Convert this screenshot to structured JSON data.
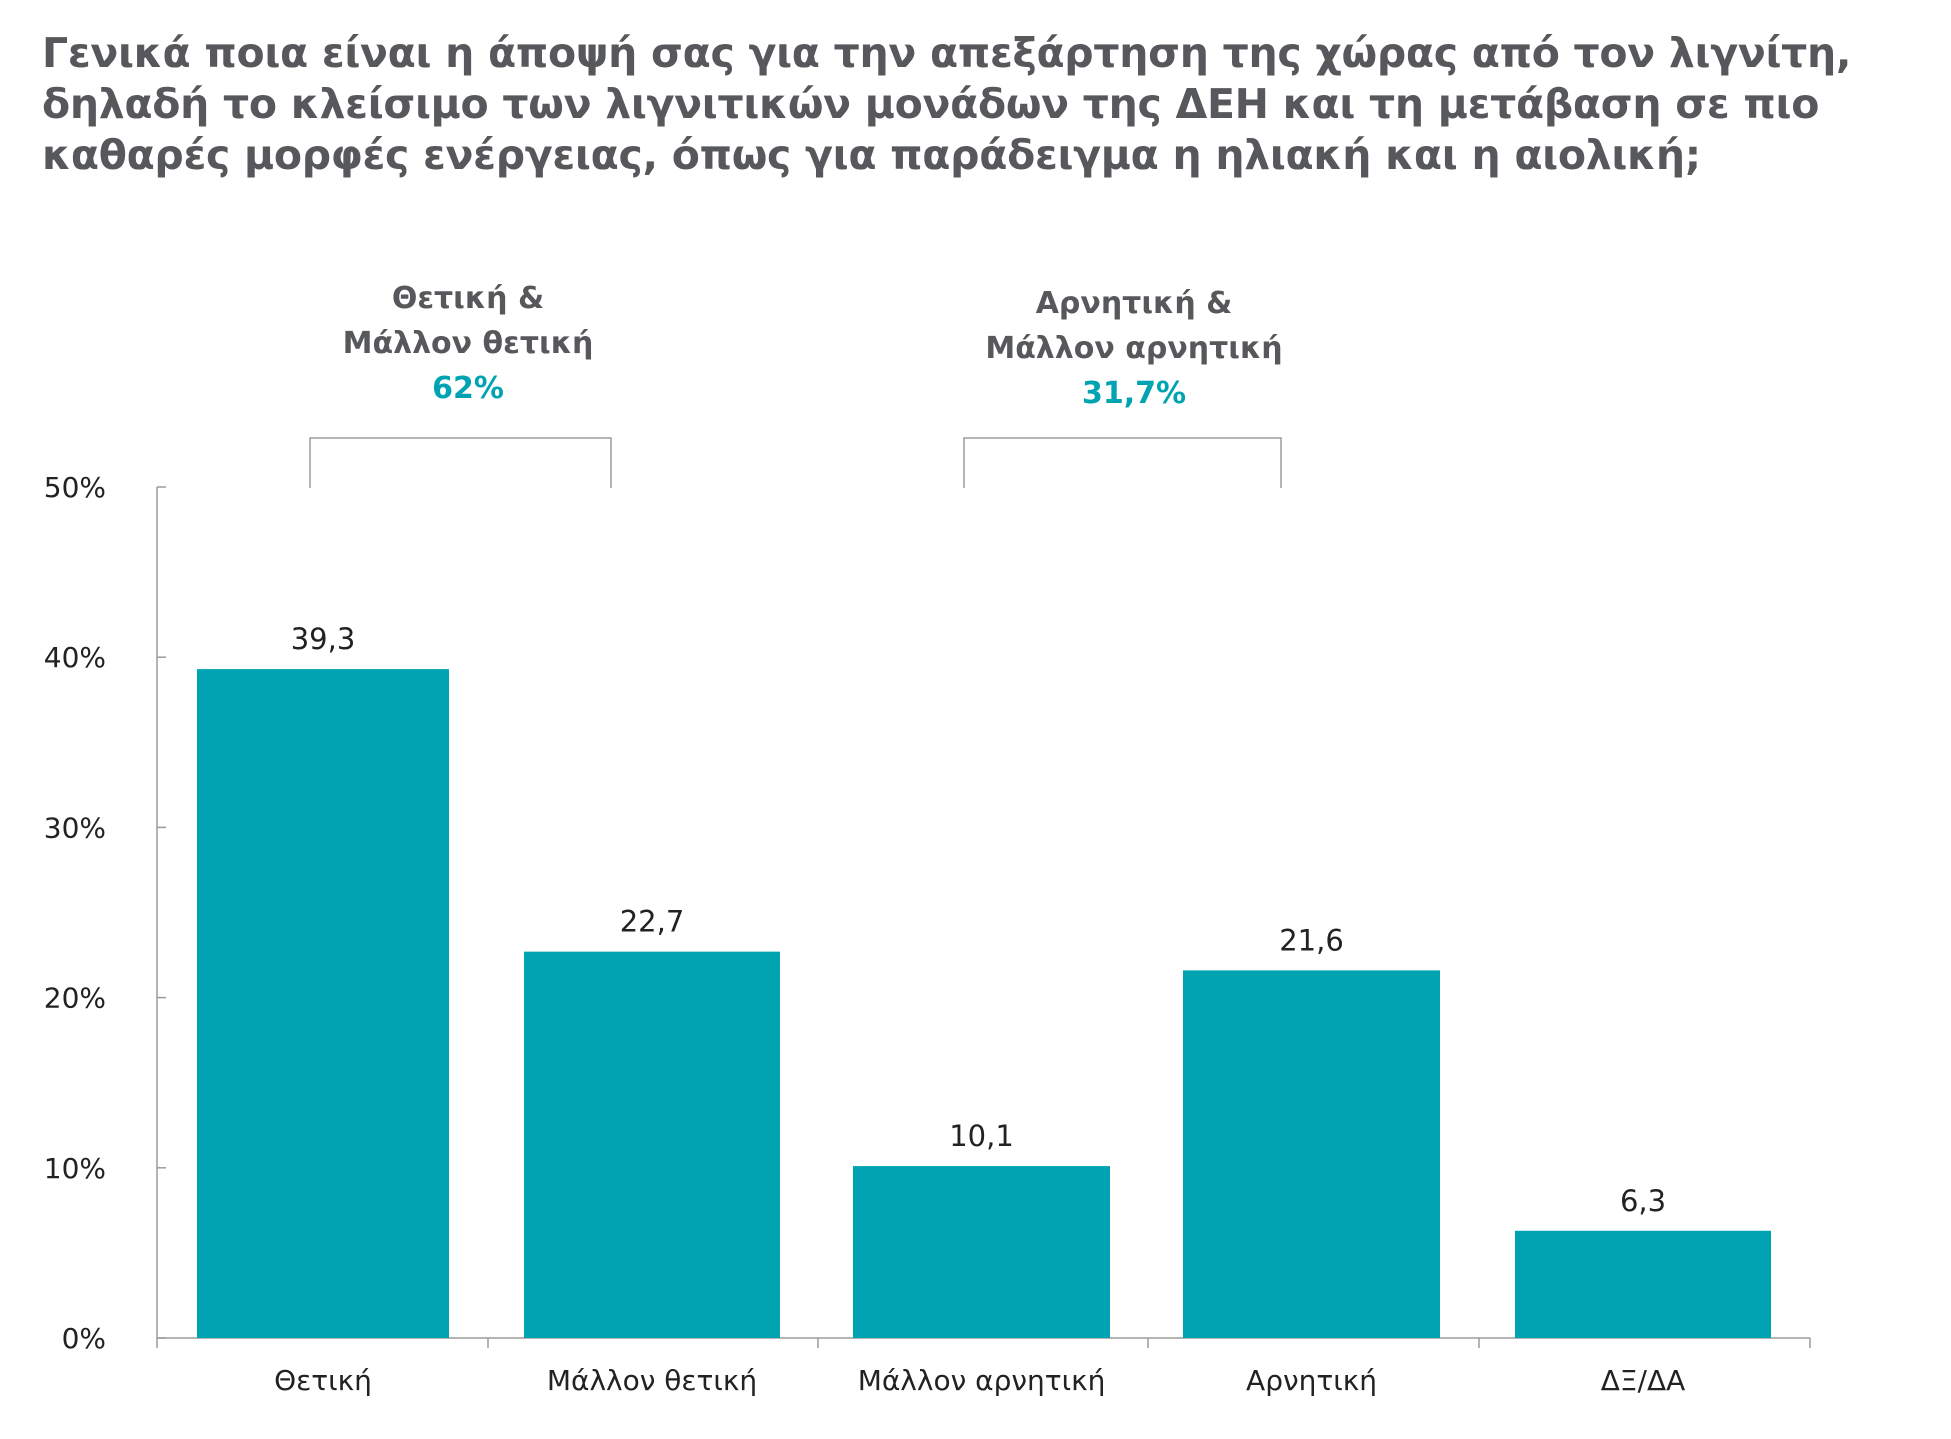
{
  "title_lines": [
    "Γενικά ποια είναι η άποψή σας για την απεξάρτηση της χώρας από τον λιγνίτη,",
    "δηλαδή το κλείσιμο των λιγνιτικών μονάδων της ΔΕΗ και τη μετάβαση σε πιο",
    "καθαρές μορφές ενέργειας, όπως για παράδειγμα η ηλιακή και η αιολική;"
  ],
  "colors": {
    "bar": "#00a3b1",
    "accent": "#00a3b1",
    "title": "#57585b",
    "text": "#222222",
    "group_label": "#57585b",
    "axis": "#9b9b9b"
  },
  "chart_data": {
    "type": "bar",
    "categories": [
      "Θετική",
      "Μάλλον θετική",
      "Μάλλον αρνητική",
      "Αρνητική",
      "ΔΞ/ΔΑ"
    ],
    "values": [
      39.3,
      22.7,
      10.1,
      21.6,
      6.3
    ],
    "data_labels": [
      "39,3",
      "22,7",
      "10,1",
      "21,6",
      "6,3"
    ],
    "ylim": [
      0,
      50
    ],
    "yticks": [
      0,
      10,
      20,
      30,
      40,
      50
    ],
    "ytick_labels": [
      "0%",
      "10%",
      "20%",
      "30%",
      "40%",
      "50%"
    ],
    "grid": false,
    "groups": [
      {
        "label_lines": [
          "Θετική &",
          "Μάλλον θετική"
        ],
        "total": "62%",
        "from_category": 0,
        "to_category": 1
      },
      {
        "label_lines": [
          "Αρνητική &",
          "Μάλλον αρνητική"
        ],
        "total": "31,7%",
        "from_category": 2,
        "to_category": 3
      }
    ]
  }
}
